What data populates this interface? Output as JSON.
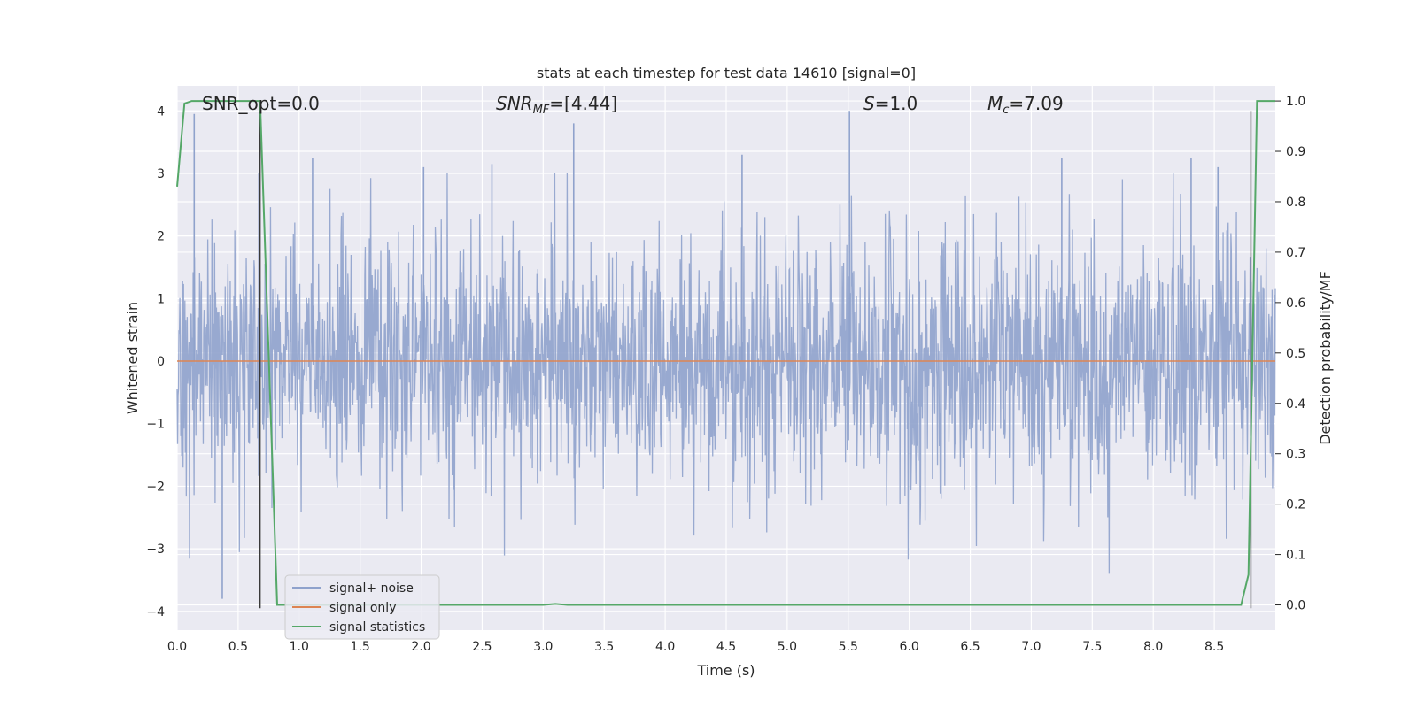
{
  "chart_data": {
    "type": "line",
    "title": "stats at each timestep for test data 14610 [signal=0]",
    "xlabel": "Time (s)",
    "ylabel_left": "Whitened strain",
    "ylabel_right": "Detection probability/MF",
    "xlim": [
      0.0,
      9.0
    ],
    "ylim_left": [
      -4.3,
      4.4
    ],
    "ylim_right": [
      -0.05,
      1.03
    ],
    "xticks": [
      "0.0",
      "0.5",
      "1.0",
      "1.5",
      "2.0",
      "2.5",
      "3.0",
      "3.5",
      "4.0",
      "4.5",
      "5.0",
      "5.5",
      "6.0",
      "6.5",
      "7.0",
      "7.5",
      "8.0",
      "8.5"
    ],
    "yticks_left": [
      "−4",
      "−3",
      "−2",
      "−1",
      "0",
      "1",
      "2",
      "3",
      "4"
    ],
    "yticks_right": [
      "0.0",
      "0.1",
      "0.2",
      "0.3",
      "0.4",
      "0.5",
      "0.6",
      "0.7",
      "0.8",
      "0.9",
      "1.0"
    ],
    "grid": true,
    "legend_position": "lower-left",
    "annotations": {
      "snr_opt": "SNR_opt=0.0",
      "snr_mf_main": "SNR",
      "snr_mf_sub": "MF",
      "snr_mf_value": "=[4.44]",
      "s_var": "S",
      "s_value": "=1.0",
      "mc_main": "M",
      "mc_sub": "c",
      "mc_value": "=7.09"
    },
    "series": [
      {
        "name": "signal+ noise",
        "axis": "left",
        "color": "#8fa2cc",
        "description_values": "dense noise between approx -4 and 4",
        "peaks_x": [
          0.14,
          0.37,
          0.67,
          1.11,
          2.02,
          2.58,
          3.25,
          4.63,
          5.51,
          7.25,
          8.31,
          8.53
        ],
        "peaks_y": [
          3.95,
          -3.8,
          3.0,
          3.25,
          3.1,
          3.15,
          3.8,
          3.3,
          4.0,
          3.25,
          3.25,
          3.1
        ]
      },
      {
        "name": "signal only",
        "axis": "left",
        "color": "#dd8452",
        "x": [
          0.0,
          9.0
        ],
        "y": [
          0.0,
          0.0
        ]
      },
      {
        "name": "signal statistics",
        "axis": "right",
        "color": "#55a868",
        "x": [
          0.0,
          0.06,
          0.12,
          0.5,
          0.68,
          0.82,
          0.88,
          1.0,
          2.0,
          3.0,
          3.1,
          3.2,
          4.0,
          5.0,
          6.0,
          7.0,
          8.0,
          8.72,
          8.78,
          8.85,
          8.9,
          8.95,
          9.0
        ],
        "y": [
          0.83,
          0.995,
          1.0,
          1.0,
          1.0,
          0.0,
          0.0,
          0.0,
          0.0,
          0.0,
          0.002,
          0.0,
          0.0,
          0.0,
          0.0,
          0.0,
          0.0,
          0.0,
          0.06,
          1.0,
          1.0,
          1.0,
          1.0
        ]
      }
    ],
    "vertical_markers_x": [
      0.68,
      8.8
    ]
  }
}
